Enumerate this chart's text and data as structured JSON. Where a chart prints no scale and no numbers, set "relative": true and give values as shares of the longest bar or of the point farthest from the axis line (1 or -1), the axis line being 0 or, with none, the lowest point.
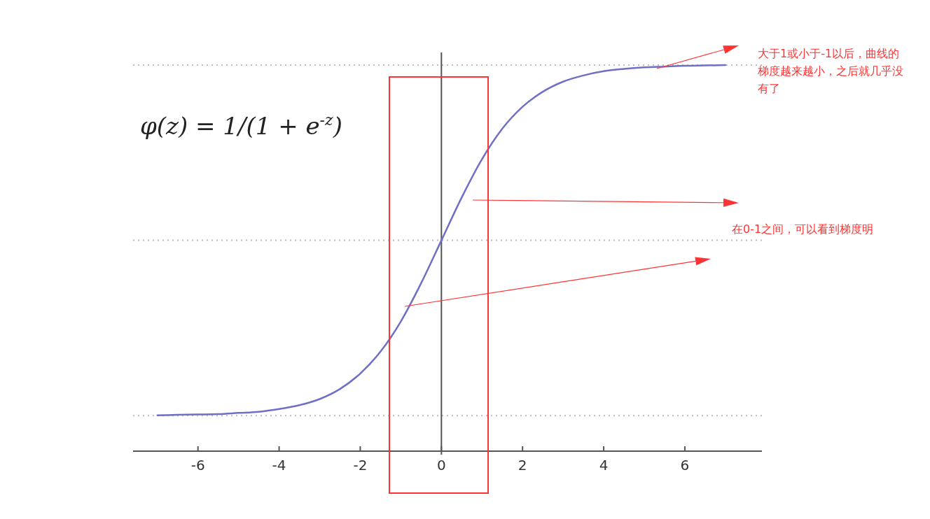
{
  "chart_data": {
    "type": "line",
    "relative": true,
    "x": [
      -7,
      -6.5,
      -6,
      -5.5,
      -5,
      -4.5,
      -4,
      -3.5,
      -3,
      -2.5,
      -2,
      -1.5,
      -1,
      -0.5,
      0,
      0.5,
      1,
      1.5,
      2,
      2.5,
      3,
      3.5,
      4,
      4.5,
      5,
      5.5,
      6,
      6.5,
      7
    ],
    "series": [
      {
        "color": "#6f6fc6",
        "values": [
          0.093,
          0.094,
          0.095,
          0.096,
          0.099,
          0.102,
          0.109,
          0.119,
          0.135,
          0.161,
          0.201,
          0.258,
          0.336,
          0.435,
          0.546,
          0.657,
          0.756,
          0.835,
          0.892,
          0.931,
          0.957,
          0.973,
          0.984,
          0.99,
          0.994,
          0.996,
          0.998,
          0.999,
          1
        ]
      }
    ],
    "xlim": [
      -7.6,
      7.9
    ],
    "xticks": [
      -6,
      -4,
      -2,
      0,
      2,
      4,
      6
    ],
    "ref_lines": [
      {
        "axis": "y",
        "value": 0.092,
        "color": "#bbbbbb",
        "line_style": "dotted"
      },
      {
        "axis": "y",
        "value": 0.546,
        "color": "#bbbbbb",
        "line_style": "dotted"
      },
      {
        "axis": "y",
        "value": 1,
        "color": "#bbbbbb",
        "line_style": "dotted"
      }
    ],
    "annotations": [
      "φ(z) = 1/(1 + e$^{-z}$)",
      "大于1或小于-1以后，曲线的梯度越来越小，之后就几乎没有了",
      "在0-1之间，可以看到梯度明"
    ],
    "marker": "none",
    "line_style": "solid"
  }
}
